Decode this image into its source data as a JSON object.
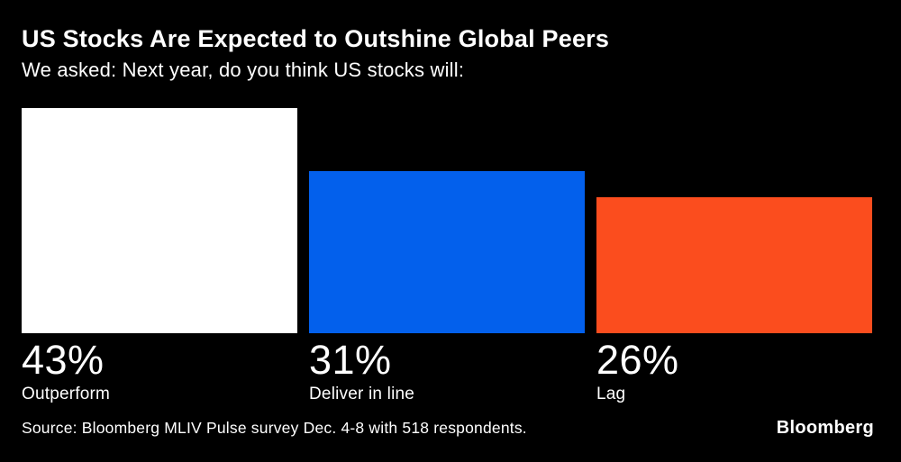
{
  "header": {
    "title": "US Stocks Are Expected to Outshine Global Peers",
    "subtitle": "We asked: Next year, do you think US stocks will:"
  },
  "chart_data": {
    "type": "bar",
    "title": "US Stocks Are Expected to Outshine Global Peers",
    "subtitle": "We asked: Next year, do you think US stocks will:",
    "categories": [
      "Outperform",
      "Deliver in line",
      "Lag"
    ],
    "values": [
      43,
      31,
      26
    ],
    "value_labels": [
      "43%",
      "31%",
      "26%"
    ],
    "unit": "%",
    "bar_colors": [
      "#ffffff",
      "#0360ec",
      "#fb4d1e"
    ],
    "ylim": [
      0,
      43
    ],
    "xlabel": "",
    "ylabel": "",
    "grid": false,
    "legend": false,
    "source": "Source: Bloomberg MLIV Pulse survey Dec. 4-8 with 518 respondents."
  },
  "footer": {
    "source": "Source: Bloomberg MLIV Pulse survey Dec. 4-8 with 518 respondents.",
    "logo": "Bloomberg"
  }
}
